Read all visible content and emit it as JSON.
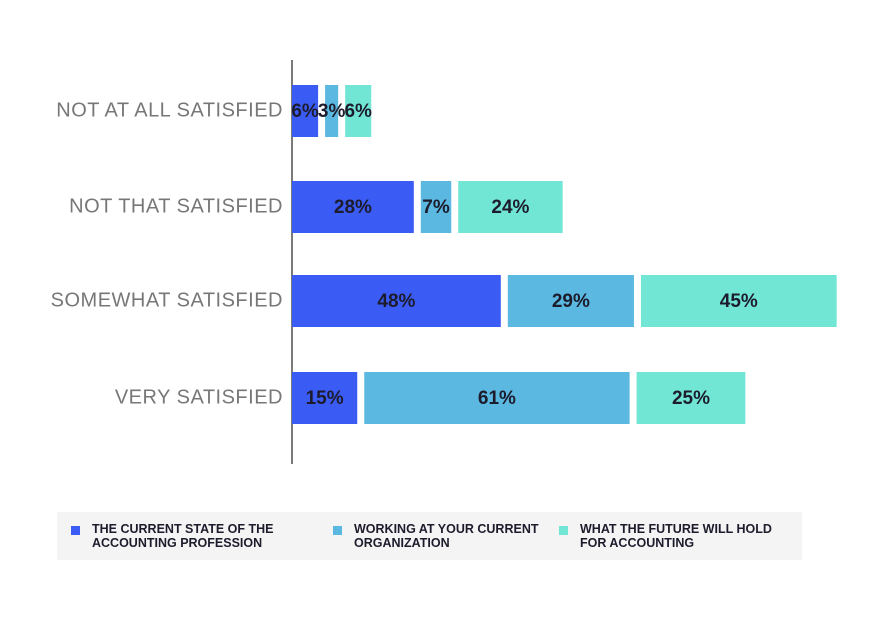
{
  "chart_data": {
    "type": "bar",
    "orientation": "horizontal",
    "layout": "side-by-side stacked",
    "categories": [
      "NOT AT ALL SATISFIED",
      "NOT THAT SATISFIED",
      "SOMEWHAT SATISFIED",
      "VERY SATISFIED"
    ],
    "series": [
      {
        "name": "THE CURRENT STATE OF THE ACCOUNTING PROFESSION",
        "color": "#3b5bf5",
        "values": [
          6,
          28,
          48,
          15
        ],
        "value_labels": [
          "6%",
          "28%",
          "48%",
          "15%"
        ]
      },
      {
        "name": "WORKING AT YOUR CURRENT ORGANIZATION",
        "color": "#5bb8e0",
        "values": [
          3,
          7,
          29,
          61
        ],
        "value_labels": [
          "3%",
          "7%",
          "29%",
          "61%"
        ]
      },
      {
        "name": "WHAT THE FUTURE WILL HOLD FOR ACCOUNTING",
        "color": "#72e6d4",
        "values": [
          6,
          24,
          45,
          25
        ],
        "value_labels": [
          "6%",
          "24%",
          "45%",
          "25%"
        ]
      }
    ],
    "legend": "bottom"
  }
}
